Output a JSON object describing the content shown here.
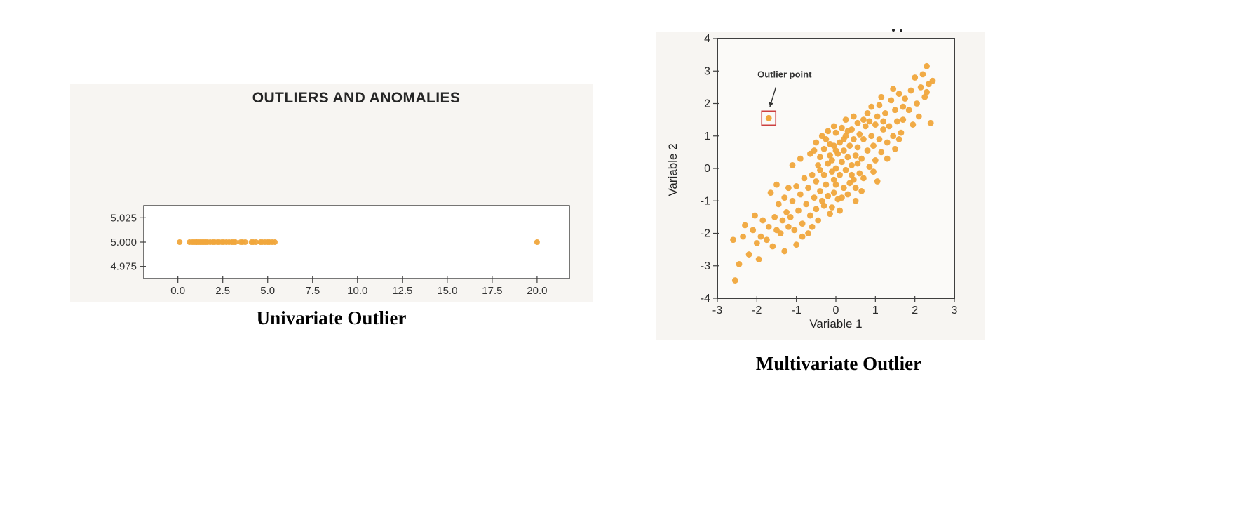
{
  "colors": {
    "panel_bg": "#f7f5f2",
    "point": "#F0A73C",
    "frame": "#3f3f3f",
    "caption_text": "#000000",
    "artifact": "#222222"
  },
  "chart_data": [
    {
      "id": "univariate",
      "type": "scatter",
      "title": "OUTLIERS AND ANOMALIES",
      "caption": "Univariate Outlier",
      "xlabel": "",
      "ylabel": "",
      "xlim": [
        -1.9,
        21.8
      ],
      "ylim": [
        4.9625,
        5.0375
      ],
      "grid": false,
      "legend": false,
      "plot_bg": "#ffffff",
      "point_color": "#F0A73C",
      "frame_color": "#3f3f3f",
      "xticks": [
        {
          "v": 0.0,
          "label": "0.0"
        },
        {
          "v": 2.5,
          "label": "2.5"
        },
        {
          "v": 5.0,
          "label": "5.0"
        },
        {
          "v": 7.5,
          "label": "7.5"
        },
        {
          "v": 10.0,
          "label": "10.0"
        },
        {
          "v": 12.5,
          "label": "12.5"
        },
        {
          "v": 15.0,
          "label": "15.0"
        },
        {
          "v": 17.5,
          "label": "17.5"
        },
        {
          "v": 20.0,
          "label": "20.0"
        }
      ],
      "yticks": [
        {
          "v": 5.025,
          "label": "5.025"
        },
        {
          "v": 5.0,
          "label": "5.000"
        },
        {
          "v": 4.975,
          "label": "4.975"
        }
      ],
      "points": [
        [
          0.1,
          5.0
        ],
        [
          0.65,
          5.0
        ],
        [
          0.8,
          5.0
        ],
        [
          0.9,
          5.0
        ],
        [
          1.0,
          5.0
        ],
        [
          1.05,
          5.0
        ],
        [
          1.15,
          5.0
        ],
        [
          1.25,
          5.0
        ],
        [
          1.35,
          5.0
        ],
        [
          1.45,
          5.0
        ],
        [
          1.55,
          5.0
        ],
        [
          1.65,
          5.0
        ],
        [
          1.8,
          5.0
        ],
        [
          1.95,
          5.0
        ],
        [
          2.05,
          5.0
        ],
        [
          2.2,
          5.0
        ],
        [
          2.3,
          5.0
        ],
        [
          2.45,
          5.0
        ],
        [
          2.55,
          5.0
        ],
        [
          2.7,
          5.0
        ],
        [
          2.85,
          5.0
        ],
        [
          3.0,
          5.0
        ],
        [
          3.1,
          5.0
        ],
        [
          3.2,
          5.0
        ],
        [
          3.5,
          5.0
        ],
        [
          3.6,
          5.0
        ],
        [
          3.75,
          5.0
        ],
        [
          4.1,
          5.0
        ],
        [
          4.2,
          5.0
        ],
        [
          4.35,
          5.0
        ],
        [
          4.6,
          5.0
        ],
        [
          4.7,
          5.0
        ],
        [
          4.85,
          5.0
        ],
        [
          5.0,
          5.0
        ],
        [
          5.1,
          5.0
        ],
        [
          5.25,
          5.0
        ],
        [
          5.4,
          5.0
        ],
        [
          20.0,
          5.0
        ]
      ]
    },
    {
      "id": "multivariate",
      "type": "scatter",
      "title": "",
      "caption": "Multivariate Outlier",
      "xlabel": "Variable 1",
      "ylabel": "Variable 2",
      "xlim": [
        -3,
        3
      ],
      "ylim": [
        -4,
        4
      ],
      "grid": false,
      "legend": false,
      "plot_bg": "#fbfaf8",
      "point_color": "#F0A73C",
      "frame_color": "#3f3f3f",
      "xticks": [
        {
          "v": -3,
          "label": "-3"
        },
        {
          "v": -2,
          "label": "-2"
        },
        {
          "v": -1,
          "label": "-1"
        },
        {
          "v": 0,
          "label": "0"
        },
        {
          "v": 1,
          "label": "1"
        },
        {
          "v": 2,
          "label": "2"
        },
        {
          "v": 3,
          "label": "3"
        }
      ],
      "yticks": [
        {
          "v": 4,
          "label": "4"
        },
        {
          "v": 3,
          "label": "3"
        },
        {
          "v": 2,
          "label": "2"
        },
        {
          "v": 1,
          "label": "1"
        },
        {
          "v": 0,
          "label": "0"
        },
        {
          "v": -1,
          "label": "-1"
        },
        {
          "v": -2,
          "label": "-2"
        },
        {
          "v": -3,
          "label": "-3"
        },
        {
          "v": -4,
          "label": "-4"
        }
      ],
      "outlier": {
        "x": -1.7,
        "y": 1.55,
        "box_color": "#cc4040"
      },
      "annotation": {
        "label": "Outlier point",
        "x": -1.3,
        "y": 2.8,
        "arrow_from": [
          -1.52,
          2.5
        ],
        "arrow_to": [
          -1.67,
          1.9
        ],
        "color": "#333333"
      },
      "points": [
        [
          -2.55,
          -3.45
        ],
        [
          -2.45,
          -2.95
        ],
        [
          -2.6,
          -2.2
        ],
        [
          -2.35,
          -2.1
        ],
        [
          -2.2,
          -2.65
        ],
        [
          -2.1,
          -1.9
        ],
        [
          -2.3,
          -1.75
        ],
        [
          -2.0,
          -2.3
        ],
        [
          -1.95,
          -2.8
        ],
        [
          -1.85,
          -1.6
        ],
        [
          -2.05,
          -1.45
        ],
        [
          -1.9,
          -2.1
        ],
        [
          -1.75,
          -2.2
        ],
        [
          -1.7,
          -1.8
        ],
        [
          -1.6,
          -2.4
        ],
        [
          -1.55,
          -1.5
        ],
        [
          -1.5,
          -1.9
        ],
        [
          -1.45,
          -1.1
        ],
        [
          -1.4,
          -2.0
        ],
        [
          -1.35,
          -1.6
        ],
        [
          -1.3,
          -0.9
        ],
        [
          -1.25,
          -1.35
        ],
        [
          -1.2,
          -1.8
        ],
        [
          -1.65,
          -0.75
        ],
        [
          -1.5,
          -0.5
        ],
        [
          -1.3,
          -2.55
        ],
        [
          -1.2,
          -0.6
        ],
        [
          -1.15,
          -1.5
        ],
        [
          -1.1,
          -1.0
        ],
        [
          -1.05,
          -1.9
        ],
        [
          -1.0,
          -0.55
        ],
        [
          -0.95,
          -1.3
        ],
        [
          -0.9,
          -0.8
        ],
        [
          -0.85,
          -1.7
        ],
        [
          -0.8,
          -0.3
        ],
        [
          -0.75,
          -1.1
        ],
        [
          -0.7,
          -0.6
        ],
        [
          -0.65,
          -1.45
        ],
        [
          -0.6,
          -0.2
        ],
        [
          -1.1,
          0.1
        ],
        [
          -0.9,
          0.3
        ],
        [
          -0.7,
          -2.0
        ],
        [
          -0.65,
          0.45
        ],
        [
          -1.0,
          -2.35
        ],
        [
          -0.55,
          -0.9
        ],
        [
          -0.5,
          -0.4
        ],
        [
          -0.5,
          -1.25
        ],
        [
          -0.45,
          0.1
        ],
        [
          -0.4,
          -0.7
        ],
        [
          -0.4,
          0.35
        ],
        [
          -0.35,
          -1.0
        ],
        [
          -0.3,
          -0.2
        ],
        [
          -0.3,
          0.6
        ],
        [
          -0.25,
          -0.5
        ],
        [
          -0.2,
          0.15
        ],
        [
          -0.2,
          -0.85
        ],
        [
          -0.15,
          0.4
        ],
        [
          -0.1,
          -0.1
        ],
        [
          -0.1,
          -1.2
        ],
        [
          -0.05,
          0.7
        ],
        [
          -0.05,
          -0.35
        ],
        [
          -0.55,
          0.55
        ],
        [
          -0.45,
          -1.6
        ],
        [
          -0.35,
          1.0
        ],
        [
          -0.25,
          0.9
        ],
        [
          -0.15,
          -1.4
        ],
        [
          -0.3,
          -1.15
        ],
        [
          -0.5,
          0.8
        ],
        [
          -0.2,
          1.15
        ],
        [
          -0.4,
          -0.05
        ],
        [
          -0.1,
          0.25
        ],
        [
          -0.05,
          -0.75
        ],
        [
          0.0,
          0.0
        ],
        [
          0.0,
          -0.5
        ],
        [
          0.05,
          0.45
        ],
        [
          0.1,
          -0.2
        ],
        [
          0.1,
          0.8
        ],
        [
          0.15,
          0.2
        ],
        [
          0.2,
          -0.6
        ],
        [
          0.2,
          0.55
        ],
        [
          0.25,
          1.0
        ],
        [
          0.25,
          -0.05
        ],
        [
          0.3,
          0.35
        ],
        [
          0.3,
          -0.8
        ],
        [
          0.35,
          0.7
        ],
        [
          0.4,
          0.1
        ],
        [
          0.4,
          1.2
        ],
        [
          0.45,
          -0.35
        ],
        [
          0.45,
          0.9
        ],
        [
          0.5,
          0.4
        ],
        [
          0.5,
          -0.6
        ],
        [
          0.55,
          1.4
        ],
        [
          0.55,
          0.65
        ],
        [
          0.05,
          -0.95
        ],
        [
          0.15,
          1.25
        ],
        [
          0.35,
          -0.45
        ],
        [
          0.25,
          1.5
        ],
        [
          0.6,
          -0.15
        ],
        [
          0.6,
          1.05
        ],
        [
          0.1,
          -1.3
        ],
        [
          0.5,
          -1.0
        ],
        [
          0.0,
          1.1
        ],
        [
          0.0,
          0.55
        ],
        [
          0.2,
          0.9
        ],
        [
          -0.15,
          0.75
        ],
        [
          0.45,
          1.6
        ],
        [
          0.7,
          1.5
        ],
        [
          0.3,
          1.15
        ],
        [
          -0.05,
          1.3
        ],
        [
          0.15,
          -0.9
        ],
        [
          0.4,
          -0.2
        ],
        [
          0.55,
          0.15
        ],
        [
          -0.6,
          -1.8
        ],
        [
          -0.85,
          -2.1
        ],
        [
          0.65,
          0.3
        ],
        [
          0.7,
          0.9
        ],
        [
          0.7,
          -0.3
        ],
        [
          0.75,
          1.3
        ],
        [
          0.8,
          0.55
        ],
        [
          0.8,
          1.7
        ],
        [
          0.85,
          0.05
        ],
        [
          0.9,
          1.0
        ],
        [
          0.9,
          1.9
        ],
        [
          0.95,
          0.7
        ],
        [
          1.0,
          1.35
        ],
        [
          1.0,
          0.25
        ],
        [
          1.05,
          1.6
        ],
        [
          1.1,
          0.9
        ],
        [
          1.1,
          1.95
        ],
        [
          1.15,
          0.5
        ],
        [
          1.2,
          1.2
        ],
        [
          0.65,
          -0.7
        ],
        [
          0.95,
          -0.1
        ],
        [
          1.15,
          2.2
        ],
        [
          0.85,
          1.45
        ],
        [
          1.05,
          -0.4
        ],
        [
          1.2,
          1.45
        ],
        [
          1.25,
          1.7
        ],
        [
          1.3,
          0.8
        ],
        [
          1.35,
          1.3
        ],
        [
          1.4,
          2.1
        ],
        [
          1.45,
          1.0
        ],
        [
          1.5,
          1.8
        ],
        [
          1.55,
          1.45
        ],
        [
          1.6,
          2.3
        ],
        [
          1.65,
          1.1
        ],
        [
          1.7,
          1.9
        ],
        [
          1.75,
          2.15
        ],
        [
          1.3,
          0.3
        ],
        [
          1.5,
          0.6
        ],
        [
          1.7,
          1.5
        ],
        [
          1.45,
          2.45
        ],
        [
          1.6,
          0.9
        ],
        [
          1.85,
          1.8
        ],
        [
          1.9,
          2.4
        ],
        [
          1.95,
          1.35
        ],
        [
          2.0,
          2.8
        ],
        [
          2.05,
          2.0
        ],
        [
          2.1,
          1.6
        ],
        [
          2.15,
          2.5
        ],
        [
          2.2,
          2.9
        ],
        [
          2.25,
          2.2
        ],
        [
          2.3,
          3.15
        ],
        [
          2.35,
          2.6
        ],
        [
          2.4,
          1.4
        ],
        [
          2.3,
          2.35
        ],
        [
          2.45,
          2.7
        ]
      ]
    }
  ]
}
